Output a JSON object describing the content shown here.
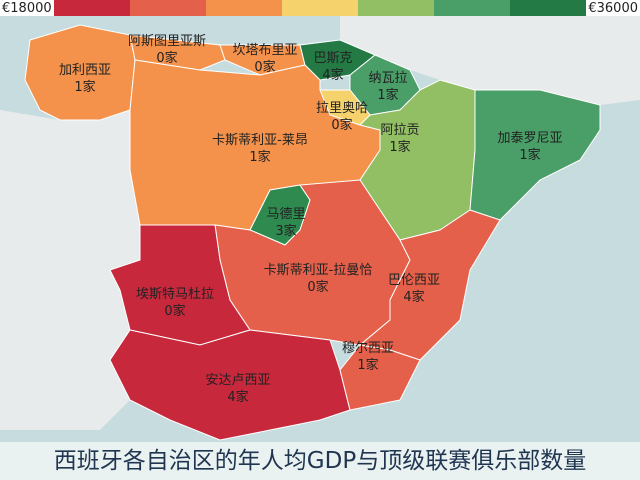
{
  "legend": {
    "min_label": "€18000",
    "max_label": "€36000",
    "colors": [
      "#c8283c",
      "#e5604a",
      "#f4924c",
      "#f5d26b",
      "#92bf63",
      "#4a9e68",
      "#237a45"
    ]
  },
  "title": "西班牙各自治区的年人均GDP与顶级联赛俱乐部数量",
  "regions": [
    {
      "name": "加利西亚",
      "clubs": "1家",
      "color": "#f4924c"
    },
    {
      "name": "阿斯图里亚斯",
      "clubs": "0家",
      "color": "#f4924c"
    },
    {
      "name": "坎塔布里亚",
      "clubs": "0家",
      "color": "#f4924c"
    },
    {
      "name": "巴斯克",
      "clubs": "4家",
      "color": "#237a45"
    },
    {
      "name": "纳瓦拉",
      "clubs": "1家",
      "color": "#4a9e68"
    },
    {
      "name": "拉里奥哈",
      "clubs": "0家",
      "color": "#f5d26b"
    },
    {
      "name": "卡斯蒂利亚-莱昂",
      "clubs": "1家",
      "color": "#f4924c"
    },
    {
      "name": "阿拉贡",
      "clubs": "1家",
      "color": "#92bf63"
    },
    {
      "name": "加泰罗尼亚",
      "clubs": "1家",
      "color": "#4a9e68"
    },
    {
      "name": "马德里",
      "clubs": "3家",
      "color": "#2f8a50"
    },
    {
      "name": "卡斯蒂利亚-拉曼恰",
      "clubs": "0家",
      "color": "#e5604a"
    },
    {
      "name": "巴伦西亚",
      "clubs": "4家",
      "color": "#e5604a"
    },
    {
      "name": "埃斯特马杜拉",
      "clubs": "0家",
      "color": "#c8283c"
    },
    {
      "name": "安达卢西亚",
      "clubs": "4家",
      "color": "#c8283c"
    },
    {
      "name": "穆尔西亚",
      "clubs": "1家",
      "color": "#e5604a"
    }
  ]
}
